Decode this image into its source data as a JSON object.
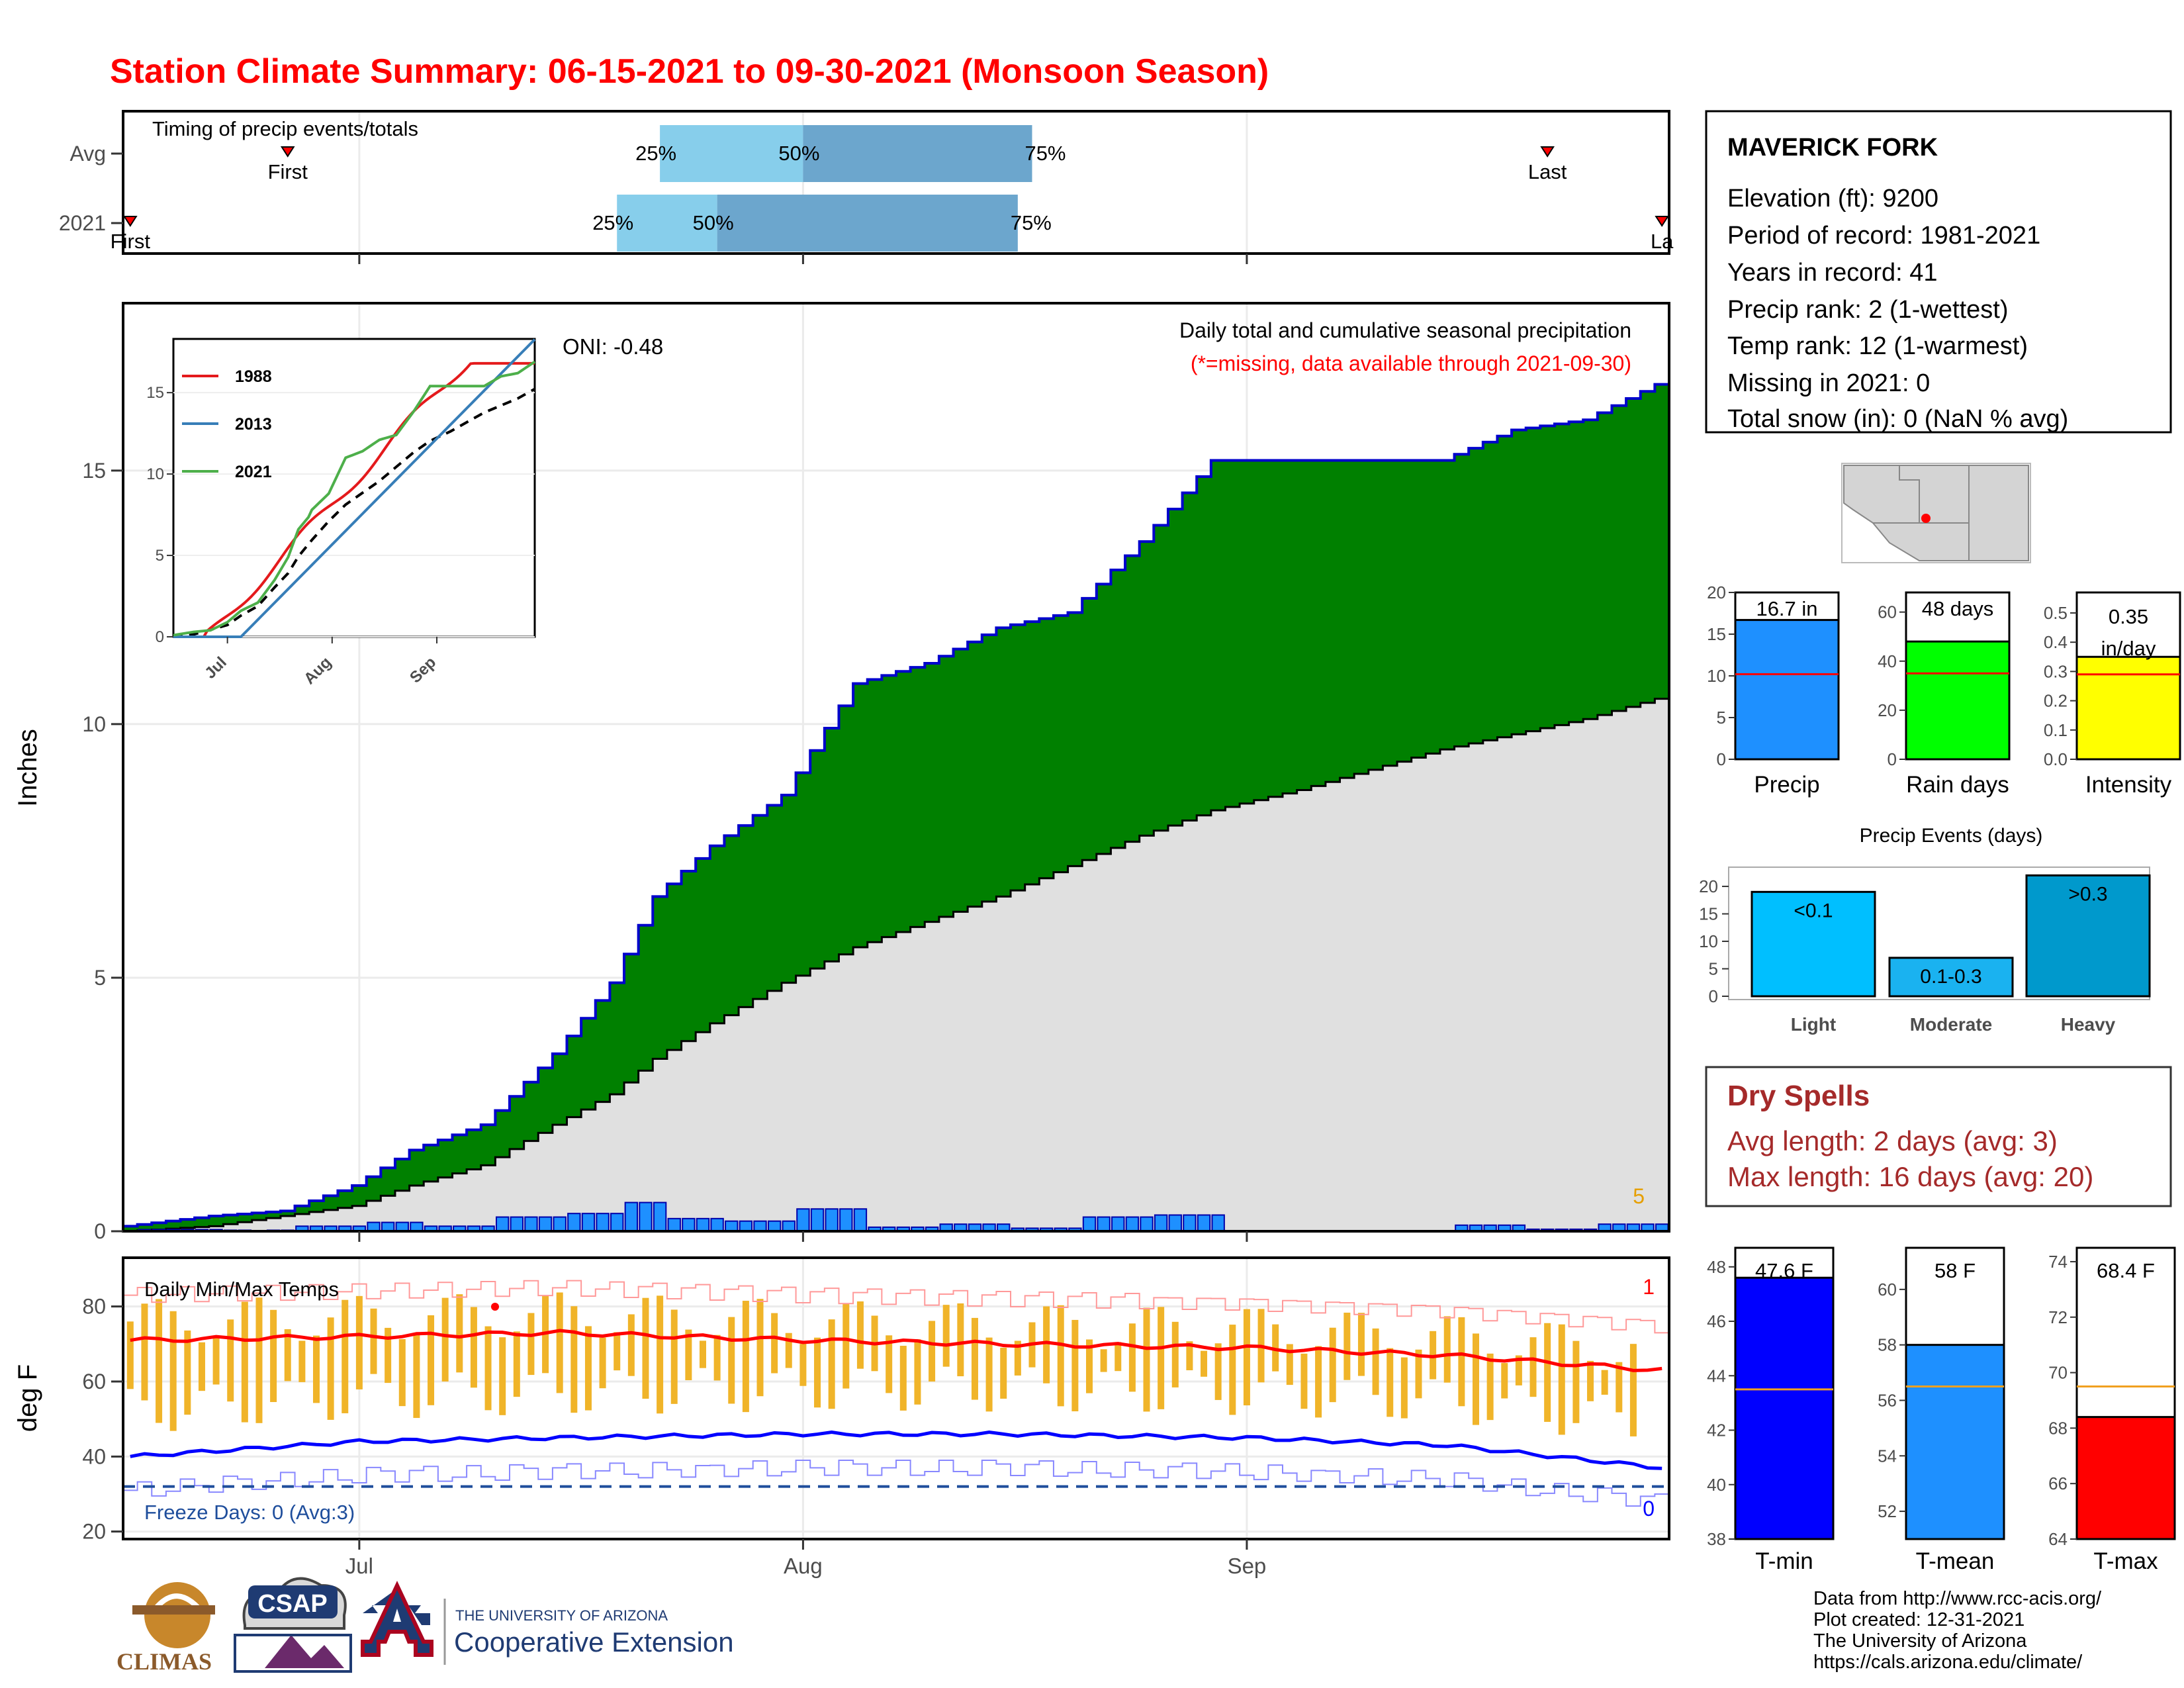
{
  "title": "Station Climate Summary: 06-15-2021 to 09-30-2021 (Monsoon Season)",
  "colors": {
    "title": "#ff0000",
    "cum_fill": "#008000",
    "cum_line": "#0000cc",
    "avg_fill": "#e0e0e0",
    "daily_bar": "#1e90ff",
    "q_light": "#87ceeb",
    "q_dark": "#6ca6cd",
    "tmax_line": "#ff0000",
    "tmin_line": "#0000ff",
    "temp_range": "#f0b429",
    "dryspell": "#a52a2a"
  },
  "timing": {
    "panel_label": "Timing of precip events/totals",
    "rows": [
      {
        "label": "Avg",
        "first_day": 11,
        "first_label": "First",
        "q25_day": 37,
        "q50_day": 47,
        "q75_day": 63,
        "last_day": 99,
        "last_label": "Last"
      },
      {
        "label": "2021",
        "first_day": 0,
        "first_label": "First",
        "q25_day": 34,
        "q50_day": 41,
        "q75_day": 62,
        "last_day": 107,
        "last_label": "La"
      }
    ],
    "q_labels": [
      "25%",
      "50%",
      "75%"
    ]
  },
  "x_axis": {
    "ticks": [
      "Jul",
      "Aug",
      "Sep"
    ]
  },
  "precip_panel": {
    "ylabel": "Inches",
    "y_ticks": [
      "0",
      "5",
      "10",
      "15"
    ],
    "ylim": [
      0,
      18.3
    ],
    "oni": "ONI: -0.48",
    "caption": "Daily total and cumulative seasonal precipitation",
    "missing_note": "(*=missing, data available through 2021-09-30)",
    "count_label": "5"
  },
  "inset": {
    "y_ticks": [
      "0",
      "5",
      "10",
      "15"
    ],
    "x_ticks": [
      "Jul",
      "Aug",
      "Sep"
    ],
    "legend": [
      {
        "name": "1988",
        "color": "#e41a1c"
      },
      {
        "name": "2013",
        "color": "#377eb8"
      },
      {
        "name": "2021",
        "color": "#4daf4a"
      }
    ]
  },
  "temp_panel": {
    "ylabel": "deg F",
    "title": "Daily Min/Max Temps",
    "y_ticks": [
      "20",
      "40",
      "60",
      "80"
    ],
    "ylim": [
      18,
      93
    ],
    "freeze_label": "Freeze Days: 0 (Avg:3)",
    "freeze_value": 32,
    "top_count": "1",
    "bottom_count": "0"
  },
  "station": {
    "name": "MAVERICK FORK",
    "lines": [
      "Elevation (ft): 9200",
      "Period of record: 1981-2021",
      "Years in record: 41",
      "Precip rank: 2 (1-wettest)",
      "Temp rank: 12 (1-warmest)",
      "Missing in 2021: 0",
      "Total snow (in): 0 (NaN % avg)"
    ]
  },
  "mini_bars": [
    {
      "label": "Precip",
      "value_label": "16.7 in",
      "value": 16.7,
      "avg": 10.2,
      "max": 20,
      "ticks": [
        "0",
        "5",
        "10",
        "15",
        "20"
      ],
      "color": "#1e90ff"
    },
    {
      "label": "Rain days",
      "value_label": "48 days",
      "value": 48,
      "avg": 35,
      "max": 68,
      "ticks": [
        "0",
        "20",
        "40",
        "60"
      ],
      "color": "#00ff00"
    },
    {
      "label": "Intensity",
      "value_label": "0.35 in/day",
      "value": 0.35,
      "avg": 0.29,
      "max": 0.57,
      "ticks": [
        "0.0",
        "0.1",
        "0.2",
        "0.3",
        "0.4",
        "0.5"
      ],
      "color": "#ffff00"
    }
  ],
  "events": {
    "title": "Precip Events (days)",
    "y_ticks": [
      "0",
      "5",
      "10",
      "15",
      "20"
    ],
    "bars": [
      {
        "category": "Light",
        "label": "<0.1",
        "value": 19,
        "color": "#00bfff"
      },
      {
        "category": "Moderate",
        "label": "0.1-0.3",
        "value": 7,
        "color": "#1ab2f0"
      },
      {
        "category": "Heavy",
        "label": ">0.3",
        "value": 22,
        "color": "#0099cc"
      }
    ]
  },
  "dry_spells": {
    "title": "Dry Spells",
    "avg_line": "Avg length: 2 days (avg: 3)",
    "max_line": "Max length: 16 days (avg: 20)"
  },
  "temp_bars": [
    {
      "label": "T-min",
      "value_label": "47.6 F",
      "value": 47.6,
      "avg": 43.5,
      "ymin": 38,
      "ymax": 48.7,
      "ticks": [
        "38",
        "40",
        "42",
        "44",
        "46",
        "48"
      ],
      "color": "#0000ff"
    },
    {
      "label": "T-mean",
      "value_label": "58 F",
      "value": 58.0,
      "avg": 56.5,
      "ymin": 51,
      "ymax": 61.5,
      "ticks": [
        "52",
        "54",
        "56",
        "58",
        "60"
      ],
      "color": "#1e90ff"
    },
    {
      "label": "T-max",
      "value_label": "68.4 F",
      "value": 68.4,
      "avg": 69.5,
      "ymin": 64,
      "ymax": 74.5,
      "ticks": [
        "64",
        "66",
        "68",
        "70",
        "72",
        "74"
      ],
      "color": "#ff0000"
    }
  ],
  "footer": {
    "lines": [
      "Data from http://www.rcc-acis.org/",
      "Plot created: 12-31-2021",
      "The University of Arizona",
      "https://cals.arizona.edu/climate/"
    ],
    "logo_climas": "CLIMAS",
    "logo_csap": "CSAP",
    "ua_small": "THE UNIVERSITY OF ARIZONA",
    "ua_big": "Cooperative Extension"
  },
  "chart_data": [
    {
      "type": "area",
      "title": "Daily total and cumulative seasonal precipitation",
      "ylabel": "Inches",
      "ylim": [
        0,
        18.3
      ],
      "x": [
        "06-15",
        "06-21",
        "06-26",
        "07-01",
        "07-05",
        "07-10",
        "07-15",
        "07-19",
        "07-22",
        "07-26",
        "07-31",
        "08-05",
        "08-10",
        "08-15",
        "08-20",
        "08-25",
        "08-30",
        "09-05",
        "09-10",
        "09-15",
        "09-20",
        "09-25",
        "09-30"
      ],
      "series": [
        {
          "name": "2021",
          "values": [
            0.1,
            0.3,
            0.4,
            0.9,
            1.6,
            2.1,
            3.5,
            4.9,
            6.6,
            7.6,
            8.6,
            10.8,
            11.2,
            11.9,
            12.2,
            13.6,
            15.2,
            15.2,
            15.2,
            15.2,
            15.8,
            16.0,
            16.7
          ]
        },
        {
          "values": [
            0.0,
            0.1,
            0.3,
            0.5,
            0.9,
            1.3,
            2.1,
            2.7,
            3.4,
            4.1,
            4.9,
            5.6,
            6.1,
            6.6,
            7.2,
            7.8,
            8.3,
            8.7,
            9.1,
            9.5,
            9.8,
            10.1,
            10.5
          ]
        }
      ]
    },
    {
      "type": "line",
      "title": "Daily Min/Max Temps",
      "ylabel": "deg F",
      "ylim": [
        18,
        93
      ],
      "x": [
        "06-15",
        "07-01",
        "07-15",
        "08-01",
        "08-15",
        "09-01",
        "09-15",
        "09-30"
      ],
      "series": [
        {
          "values": [
            71,
            72,
            73,
            71,
            70,
            69,
            67,
            63
          ]
        },
        {
          "values": [
            40,
            44,
            45,
            46,
            46,
            45,
            43,
            37
          ]
        }
      ]
    },
    {
      "type": "bar",
      "title": "Precip Events (days)",
      "categories": [
        "Light",
        "Moderate",
        "Heavy"
      ],
      "values": [
        19,
        7,
        22
      ]
    }
  ]
}
